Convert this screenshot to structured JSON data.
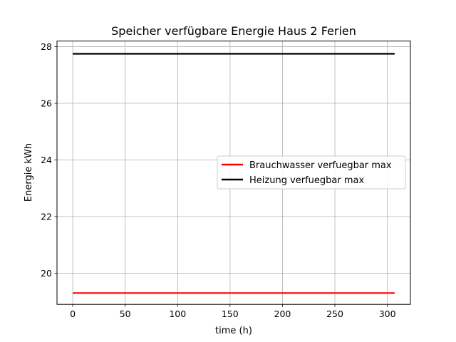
{
  "chart_data": {
    "type": "line",
    "title": "Speicher verfügbare Energie Haus 2 Ferien",
    "xlabel": "time (h)",
    "ylabel": "Energie kWh",
    "xlim": [
      -15,
      322
    ],
    "ylim": [
      18.9,
      28.2
    ],
    "xticks": [
      0,
      50,
      100,
      150,
      200,
      250,
      300
    ],
    "yticks": [
      20,
      22,
      24,
      26,
      28
    ],
    "grid": true,
    "legend_position": "center-right",
    "series": [
      {
        "name": "Brauchwasser verfuegbar max",
        "color": "#ff0000",
        "x": [
          0,
          307
        ],
        "y": [
          19.3,
          19.3
        ]
      },
      {
        "name": "Heizung verfuegbar max",
        "color": "#000000",
        "x": [
          0,
          307
        ],
        "y": [
          27.75,
          27.75
        ]
      }
    ]
  }
}
